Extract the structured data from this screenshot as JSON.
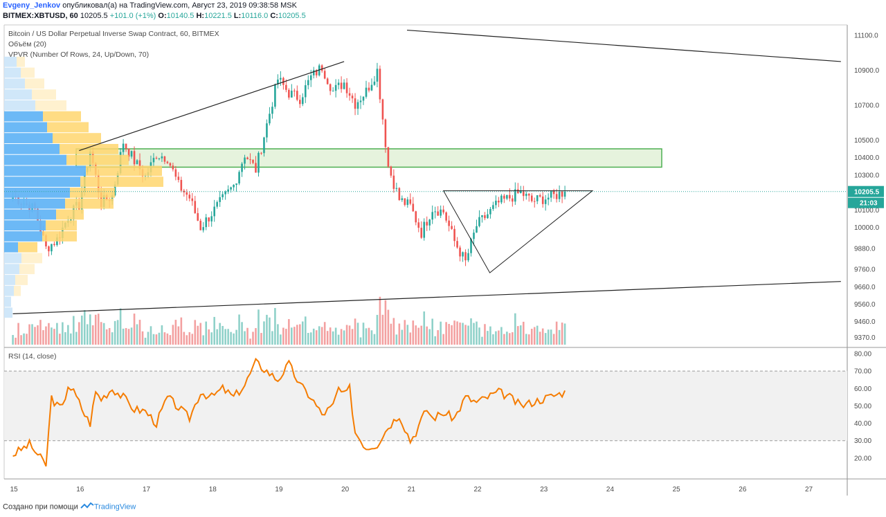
{
  "header": {
    "author": "Evgeny_Jenkov",
    "published_text": "опубликовал(а) на TradingView.com, Август 23, 2019 09:38:58 MSK",
    "symbol": "BITMEX:XBTUSD, 60",
    "last": "10205.5",
    "change": "+101.0 (+1%)",
    "o_label": "O:",
    "o": "10140.5",
    "h_label": "H:",
    "h": "10221.5",
    "l_label": "L:",
    "l": "10116.0",
    "c_label": "C:",
    "c": "10205.5"
  },
  "legend": {
    "title": "Bitcoin / US Dollar Perpetual Inverse Swap Contract, 60, BITMEX",
    "volume": "Объём (20)",
    "vpvr": "VPVR (Number Of Rows, 24, Up/Down, 70)",
    "rsi": "RSI (14, close)"
  },
  "price_badge": "10205.5",
  "timer_badge": "21:03",
  "footer": {
    "prefix": "Создано при помощи",
    "brand": "TradingView"
  },
  "colors": {
    "up": "#26a69a",
    "down": "#ef5350",
    "vol_up": "#8fd1c9",
    "vol_down": "#f3a0a0",
    "zone_fill": "#e6f3dd",
    "zone_line": "#4caf50",
    "rsi_line": "#f57c00",
    "vp_up": "#64b5f6",
    "vp_up_light": "#cde6f9",
    "vp_down": "#ffd66e",
    "vp_down_light": "#ffeec7",
    "badge": "#26a69a"
  },
  "chart_data": [
    {
      "type": "candlestick",
      "price_axis": {
        "ylim": [
          9320,
          11160
        ],
        "ticks": [
          11100,
          10900,
          10700,
          10500,
          10400,
          10300,
          10100,
          10000,
          9880,
          9760,
          9660,
          9560,
          9460,
          9370
        ],
        "tick_labels": [
          "11100.0",
          "10900.0",
          "10700.0",
          "10500.0",
          "10400.0",
          "10300.0",
          "10100.0",
          "10000.0",
          "9880.0",
          "9760.0",
          "9660.0",
          "9560.0",
          "9460.0",
          "9370.0"
        ]
      },
      "x_ticks": [
        "15",
        "16",
        "17",
        "18",
        "19",
        "20",
        "21",
        "22",
        "23",
        "24",
        "25",
        "26",
        "27"
      ],
      "anchors_hours": [
        0,
        8,
        12,
        16,
        20,
        24,
        28,
        32,
        36,
        40,
        44,
        48,
        52,
        56,
        60,
        64,
        68,
        72,
        76,
        80,
        84,
        88,
        96,
        100,
        104,
        108,
        112,
        116,
        120,
        124,
        128,
        132,
        136,
        140,
        144,
        148,
        152,
        156,
        160,
        164,
        168,
        176,
        184,
        188,
        196,
        200
      ],
      "anchors_close": [
        10180,
        10100,
        9880,
        9930,
        10060,
        10130,
        10440,
        10140,
        10180,
        10490,
        10380,
        10290,
        10420,
        10400,
        10240,
        10170,
        10000,
        10080,
        10160,
        10240,
        10420,
        10330,
        10850,
        10770,
        10740,
        10860,
        10920,
        10780,
        10830,
        10710,
        10780,
        10900,
        10350,
        10160,
        10120,
        9970,
        10110,
        10090,
        9920,
        9800,
        10010,
        10140,
        10200,
        10150,
        10180,
        10205
      ],
      "last_price": 10205.5,
      "zone": [
        10345,
        10450
      ],
      "trend_lines": [
        {
          "from": [
            "16",
            10440
          ],
          "to": [
            "20",
            10950
          ]
        },
        {
          "from": [
            "15",
            9505
          ],
          "to": [
            "27.5",
            9690
          ]
        },
        {
          "from": [
            "20.95",
            11130
          ],
          "to": [
            "27.5",
            10950
          ]
        }
      ],
      "triangle": [
        [
          "21.5",
          10210
        ],
        [
          "23.75",
          10210
        ],
        [
          "22.2",
          9740
        ]
      ]
    },
    {
      "type": "volume_profile",
      "rows": 24,
      "up_lengths": [
        12,
        10,
        14,
        16,
        22,
        25,
        20,
        55,
        60,
        75,
        88,
        95,
        110,
        118,
        90,
        80,
        70,
        62,
        56,
        45,
        40,
        30,
        24,
        18
      ],
      "down_lengths": [
        0,
        0,
        10,
        18,
        22,
        30,
        28,
        50,
        45,
        40,
        70,
        65,
        120,
        110,
        90,
        85,
        70,
        60,
        55,
        45,
        35,
        28,
        20,
        12
      ]
    },
    {
      "type": "bar",
      "title": "Объём (20)",
      "relative_values": "derived from candles; spikes on 16th, 17th, 19th evening, 20th, 21st drop"
    },
    {
      "type": "line",
      "title": "RSI (14, close)",
      "ylim": [
        12,
        82
      ],
      "ticks": [
        80,
        70,
        60,
        50,
        40,
        30,
        20
      ],
      "tick_labels": [
        "80.00",
        "70.00",
        "60.00",
        "50.00",
        "40.00",
        "30.00",
        "20.00"
      ],
      "band": [
        30,
        70
      ],
      "anchors_hours": [
        0,
        6,
        12,
        14,
        16,
        18,
        20,
        22,
        24,
        26,
        28,
        30,
        32,
        36,
        40,
        44,
        48,
        52,
        56,
        60,
        64,
        68,
        72,
        76,
        80,
        84,
        88,
        92,
        96,
        100,
        104,
        108,
        112,
        116,
        118,
        120,
        122,
        124,
        128,
        132,
        136,
        140,
        144,
        146,
        148,
        150,
        152,
        156,
        160,
        164,
        168,
        172,
        176,
        180,
        184,
        188,
        192,
        196,
        200
      ],
      "values": [
        22,
        28,
        16,
        55,
        50,
        49,
        62,
        58,
        52,
        45,
        40,
        58,
        54,
        60,
        55,
        48,
        47,
        40,
        55,
        49,
        43,
        58,
        55,
        60,
        55,
        62,
        75,
        70,
        65,
        74,
        62,
        55,
        45,
        50,
        60,
        56,
        60,
        35,
        26,
        28,
        38,
        45,
        30,
        35,
        42,
        48,
        43,
        46,
        43,
        55,
        52,
        55,
        58,
        55,
        50,
        52,
        54,
        56,
        58
      ]
    }
  ]
}
